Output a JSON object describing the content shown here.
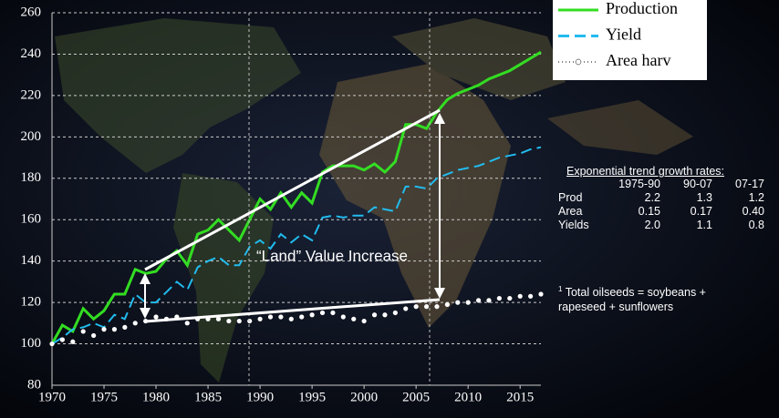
{
  "chart_data": {
    "type": "line",
    "annotation": "“Land” Value Increase",
    "x": [
      1970,
      1971,
      1972,
      1973,
      1974,
      1975,
      1976,
      1977,
      1978,
      1979,
      1980,
      1981,
      1982,
      1983,
      1984,
      1985,
      1986,
      1987,
      1988,
      1989,
      1990,
      1991,
      1992,
      1993,
      1994,
      1995,
      1996,
      1997,
      1998,
      1999,
      2000,
      2001,
      2002,
      2003,
      2004,
      2005,
      2006,
      2007,
      2008,
      2009,
      2010,
      2011,
      2012,
      2013,
      2014,
      2015,
      2016,
      2017
    ],
    "series": [
      {
        "name": "Production",
        "color": "#33dd22",
        "style": "solid",
        "values": [
          100,
          109,
          106,
          117,
          112,
          116,
          124,
          124,
          136,
          134,
          135,
          141,
          145,
          138,
          153,
          155,
          160,
          155,
          150,
          160,
          170,
          165,
          173,
          166,
          173,
          168,
          183,
          186,
          186,
          186,
          184,
          187,
          183,
          188,
          206,
          206,
          204,
          212,
          218,
          221,
          223,
          225,
          228,
          230,
          232,
          235,
          238,
          241
        ]
      },
      {
        "name": "Yield",
        "color": "#22bbee",
        "style": "dashed",
        "values": [
          100,
          103,
          107,
          108,
          110,
          108,
          114,
          112,
          124,
          120,
          120,
          125,
          130,
          126,
          137,
          140,
          142,
          138,
          138,
          147,
          150,
          146,
          153,
          149,
          153,
          150,
          161,
          162,
          161,
          162,
          162,
          166,
          165,
          164,
          176,
          176,
          175,
          180,
          182,
          184,
          185,
          186,
          188,
          190,
          191,
          192,
          194,
          195
        ]
      },
      {
        "name": "Area harv",
        "color": "#ffffff",
        "style": "dots",
        "values": [
          100,
          102,
          101,
          106,
          104,
          107,
          107,
          108,
          110,
          111,
          113,
          112,
          113,
          110,
          112,
          112,
          112,
          111,
          111,
          111,
          112,
          113,
          113,
          112,
          113,
          114,
          115,
          115,
          113,
          112,
          111,
          114,
          114,
          115,
          117,
          118,
          118,
          118,
          119,
          120,
          120,
          121,
          121,
          122,
          122,
          123,
          123,
          124
        ]
      }
    ],
    "xlim": [
      1970,
      2017
    ],
    "xticks": [
      1970,
      1975,
      1980,
      1985,
      1990,
      1995,
      2000,
      2005,
      2010,
      2015
    ],
    "ylim": [
      80,
      260
    ],
    "yticks": [
      80,
      100,
      120,
      140,
      160,
      180,
      200,
      220,
      240,
      260
    ],
    "grid": true
  },
  "growth_table": {
    "title": "Exponential trend growth rates:",
    "columns": [
      "1975-90",
      "90-07",
      "07-17"
    ],
    "rows": [
      [
        "Prod",
        "2.2",
        "1.3",
        "1.2"
      ],
      [
        "Area",
        "0.15",
        "0.17",
        "0.40"
      ],
      [
        "Yields",
        "2.0",
        "1.1",
        "0.8"
      ]
    ]
  },
  "footnote": {
    "mark": "1",
    "text": " Total oilseeds = soybeans + rapeseed + sunflowers"
  }
}
